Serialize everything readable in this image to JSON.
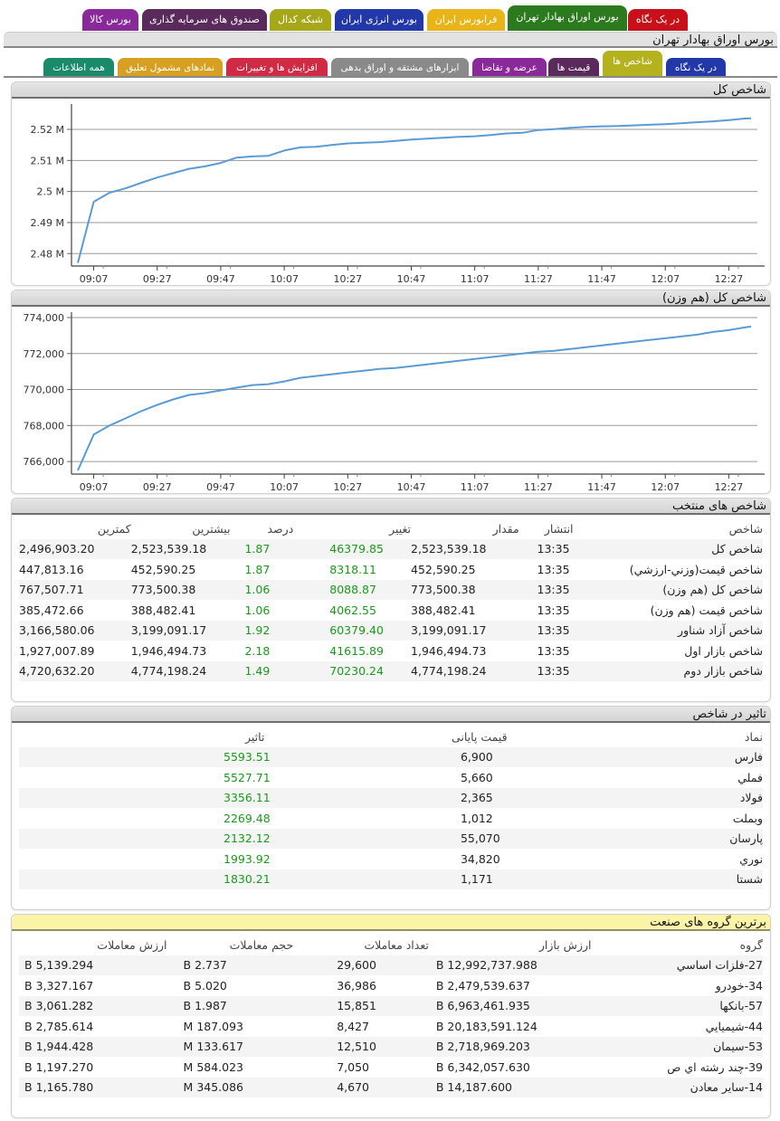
{
  "top_tabs": [
    {
      "label": "در یک نگاه",
      "color": "#c8101a",
      "selected": false
    },
    {
      "label": "بورس اوراق بهادار تهران",
      "color": "#2c7a1e",
      "selected": true
    },
    {
      "label": "فرابورس ایران",
      "color": "#e8b418",
      "selected": false
    },
    {
      "label": "بورس انرژی ایران",
      "color": "#2238a8",
      "selected": false
    },
    {
      "label": "شبکه کدال",
      "color": "#a6a81a",
      "selected": false
    },
    {
      "label": "صندوق های سرمایه گذاری",
      "color": "#5a2a5c",
      "selected": false
    },
    {
      "label": "بورس کالا",
      "color": "#8a2a9a",
      "selected": false
    }
  ],
  "page_title": "بورس اوراق بهادار تهران",
  "sub_tabs": [
    {
      "label": "در یک نگاه",
      "color": "#2238a8",
      "selected": false
    },
    {
      "label": "شاخص ها",
      "color": "#b4b21e",
      "selected": true
    },
    {
      "label": "قیمت ها",
      "color": "#5a2a5c",
      "selected": false
    },
    {
      "label": "عرضه و تقاضا",
      "color": "#8a2a9a",
      "selected": false
    },
    {
      "label": "ابزارهای مشتقه و اوراق بدهی",
      "color": "#8a8a8a",
      "selected": false
    },
    {
      "label": "افزایش ها و تغییرات",
      "color": "#d02a44",
      "selected": false
    },
    {
      "label": "نمادهای مشمول تعلیق",
      "color": "#d8a020",
      "selected": false
    },
    {
      "label": "همه اطلاعات",
      "color": "#1a8a6a",
      "selected": false
    }
  ],
  "accent": {
    "line": "#5b9bd5",
    "positive": "#1a9a1a"
  },
  "chart_data": [
    {
      "type": "line",
      "title": "شاخص کل",
      "x_ticks": [
        "09:07",
        "09:27",
        "09:47",
        "10:07",
        "10:27",
        "10:47",
        "11:07",
        "11:27",
        "11:47",
        "12:07",
        "12:27"
      ],
      "y_ticks": [
        "2.48 M",
        "2.49 M",
        "2.5 M",
        "2.51 M",
        "2.52 M"
      ],
      "ylim": [
        2476000,
        2527000
      ],
      "xlim_minutes": [
        540,
        756
      ],
      "grid": true,
      "series": [
        {
          "x": [
            "09:02",
            "09:07",
            "09:12",
            "09:17",
            "09:22",
            "09:27",
            "09:32",
            "09:37",
            "09:42",
            "09:47",
            "09:52",
            "09:57",
            "10:02",
            "10:07",
            "10:12",
            "10:17",
            "10:22",
            "10:27",
            "10:32",
            "10:37",
            "10:42",
            "10:47",
            "10:52",
            "10:57",
            "11:02",
            "11:07",
            "11:12",
            "11:17",
            "11:22",
            "11:27",
            "11:32",
            "11:37",
            "11:42",
            "11:47",
            "11:52",
            "11:57",
            "12:02",
            "12:07",
            "12:12",
            "12:17",
            "12:22",
            "12:27",
            "12:32",
            "12:34"
          ],
          "y": [
            2477000,
            2496700,
            2499600,
            2501000,
            2502800,
            2504500,
            2505900,
            2507300,
            2508100,
            2509200,
            2510900,
            2511300,
            2511500,
            2513200,
            2514200,
            2514400,
            2515000,
            2515500,
            2515700,
            2515900,
            2516300,
            2516700,
            2517000,
            2517300,
            2517600,
            2517800,
            2518200,
            2518700,
            2518900,
            2519800,
            2520100,
            2520500,
            2520800,
            2521000,
            2521100,
            2521300,
            2521500,
            2521700,
            2522000,
            2522300,
            2522600,
            2523000,
            2523500,
            2523550
          ]
        }
      ]
    },
    {
      "type": "line",
      "title": "شاخص کل (هم وزن)",
      "x_ticks": [
        "09:07",
        "09:27",
        "09:47",
        "10:07",
        "10:27",
        "10:47",
        "11:07",
        "11:27",
        "11:47",
        "12:07",
        "12:27"
      ],
      "y_ticks": [
        "766,000",
        "768,000",
        "770,000",
        "772,000",
        "774,000"
      ],
      "ylim": [
        765300,
        774100
      ],
      "xlim_minutes": [
        540,
        756
      ],
      "grid": true,
      "series": [
        {
          "x": [
            "09:02",
            "09:07",
            "09:12",
            "09:17",
            "09:22",
            "09:27",
            "09:32",
            "09:37",
            "09:42",
            "09:47",
            "09:52",
            "09:57",
            "10:02",
            "10:07",
            "10:12",
            "10:17",
            "10:22",
            "10:27",
            "10:32",
            "10:37",
            "10:42",
            "10:47",
            "10:52",
            "10:57",
            "11:02",
            "11:07",
            "11:12",
            "11:17",
            "11:22",
            "11:27",
            "11:32",
            "11:37",
            "11:42",
            "11:47",
            "11:52",
            "11:57",
            "12:02",
            "12:07",
            "12:12",
            "12:17",
            "12:22",
            "12:27",
            "12:32",
            "12:34"
          ],
          "y": [
            765500,
            767500,
            768000,
            768400,
            768800,
            769150,
            769450,
            769700,
            769800,
            769950,
            770100,
            770250,
            770300,
            770450,
            770650,
            770750,
            770850,
            770950,
            771050,
            771150,
            771200,
            771300,
            771400,
            771500,
            771600,
            771700,
            771800,
            771900,
            772000,
            772100,
            772150,
            772250,
            772350,
            772450,
            772550,
            772650,
            772750,
            772850,
            772950,
            773050,
            773200,
            773300,
            773450,
            773500
          ]
        }
      ]
    }
  ],
  "selected_indices": {
    "title": "شاخص های منتخب",
    "columns": [
      "شاخص",
      "انتشار",
      "مقدار",
      "تغییر",
      "درصد",
      "بیشترین",
      "کمترین"
    ],
    "rows": [
      [
        "شاخص کل",
        "13:35",
        "2,523,539.18",
        "46379.85",
        "1.87",
        "2,523,539.18",
        "2,496,903.20"
      ],
      [
        "شاخص قيمت(وزني-ارزشي)",
        "13:35",
        "452,590.25",
        "8318.11",
        "1.87",
        "452,590.25",
        "447,813.16"
      ],
      [
        "شاخص کل (هم وزن)",
        "13:35",
        "773,500.38",
        "8088.87",
        "1.06",
        "773,500.38",
        "767,507.71"
      ],
      [
        "شاخص قيمت (هم وزن)",
        "13:35",
        "388,482.41",
        "4062.55",
        "1.06",
        "388,482.41",
        "385,472.66"
      ],
      [
        "شاخص آزاد شناور",
        "13:35",
        "3,199,091.17",
        "60379.40",
        "1.92",
        "3,199,091.17",
        "3,166,580.06"
      ],
      [
        "شاخص بازار اول",
        "13:35",
        "1,946,494.73",
        "41615.89",
        "2.18",
        "1,946,494.73",
        "1,927,007.89"
      ],
      [
        "شاخص بازار دوم",
        "13:35",
        "4,774,198.24",
        "70230.24",
        "1.49",
        "4,774,198.24",
        "4,720,632.20"
      ]
    ]
  },
  "index_impact": {
    "title": "تاثیر در شاخص",
    "columns": [
      "نماد",
      "قیمت پایانی",
      "تاثیر"
    ],
    "rows": [
      [
        "فارس",
        "6,900",
        "5593.51"
      ],
      [
        "فملي",
        "5,660",
        "5527.71"
      ],
      [
        "فولاد",
        "2,365",
        "3356.11"
      ],
      [
        "وبملت",
        "1,012",
        "2269.48"
      ],
      [
        "پارسان",
        "55,070",
        "2132.12"
      ],
      [
        "نوري",
        "34,820",
        "1993.92"
      ],
      [
        "شستا",
        "1,171",
        "1830.21"
      ]
    ]
  },
  "top_industries": {
    "title": "برترین گروه های صنعت",
    "columns": [
      "گروه",
      "ارزش بازار",
      "تعداد معاملات",
      "حجم معاملات",
      "ارزش معاملات"
    ],
    "rows": [
      [
        "27-فلزات اساسي",
        "12,992,737.988 B",
        "29,600",
        "2.737 B",
        "5,139.294 B"
      ],
      [
        "34-خودرو",
        "2,479,539.637 B",
        "36,986",
        "5.020 B",
        "3,327.167 B"
      ],
      [
        "57-بانكها",
        "6,963,461.935 B",
        "15,851",
        "1.987 B",
        "3,061.282 B"
      ],
      [
        "44-شيميايي",
        "20,183,591.124 B",
        "8,427",
        "187.093 M",
        "2,785.614 B"
      ],
      [
        "53-سيمان",
        "2,718,969.203 B",
        "12,510",
        "133.617 M",
        "1,944.428 B"
      ],
      [
        "39-چند رشته اي ص",
        "6,342,057.630 B",
        "7,050",
        "584.023 M",
        "1,197.270 B"
      ],
      [
        "14-ساير معادن",
        "14,187.600 B",
        "4,670",
        "345.086 M",
        "1,165.780 B"
      ]
    ]
  }
}
